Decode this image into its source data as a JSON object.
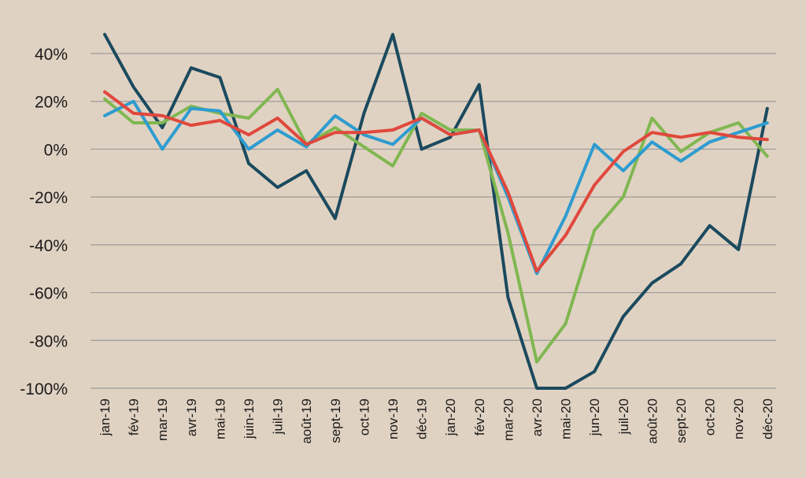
{
  "chart_data": {
    "type": "line",
    "title": "",
    "xlabel": "",
    "ylabel": "",
    "ylim": [
      -100,
      40
    ],
    "yticks": [
      40,
      20,
      0,
      -20,
      -40,
      -60,
      -80,
      -100
    ],
    "ytick_labels": [
      "40%",
      "20%",
      "0%",
      "-20%",
      "-40%",
      "-60%",
      "-80%",
      "-100%"
    ],
    "grid": "horizontal",
    "legend": "none",
    "categories": [
      "jan-19",
      "fév-19",
      "mar-19",
      "avr-19",
      "mai-19",
      "juin-19",
      "juil-19",
      "août-19",
      "sept-19",
      "oct-19",
      "nov-19",
      "déc-19",
      "jan-20",
      "fév-20",
      "mar-20",
      "avr-20",
      "mai-20",
      "jun-20",
      "juil-20",
      "août-20",
      "sept-20",
      "oct-20",
      "nov-20",
      "déc-20"
    ],
    "series": [
      {
        "color": "#1b4a5e",
        "values": [
          48,
          26,
          9,
          34,
          30,
          -6,
          -16,
          -9,
          -29,
          15,
          48,
          0,
          5,
          27,
          -62,
          -100,
          -100,
          -93,
          -70,
          -56,
          -48,
          -32,
          -42,
          17
        ]
      },
      {
        "color": "#80b751",
        "values": [
          21,
          11,
          11,
          18,
          15,
          13,
          25,
          2,
          9,
          1,
          -7,
          15,
          8,
          8,
          -35,
          -89,
          -73,
          -34,
          -20,
          13,
          -1,
          7,
          11,
          -3
        ]
      },
      {
        "color": "#2e9cd0",
        "values": [
          14,
          20,
          0,
          17,
          16,
          0,
          8,
          1,
          14,
          6,
          2,
          13,
          6,
          8,
          -20,
          -52,
          -28,
          2,
          -9,
          3,
          -5,
          3,
          7,
          11
        ]
      },
      {
        "color": "#e0483c",
        "values": [
          24,
          15,
          14,
          10,
          12,
          6,
          13,
          2,
          7,
          7,
          8,
          13,
          6,
          8,
          -18,
          -51,
          -36,
          -15,
          -1,
          7,
          5,
          7,
          5,
          4
        ]
      }
    ]
  }
}
